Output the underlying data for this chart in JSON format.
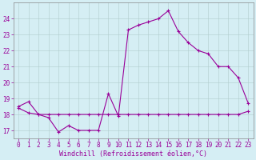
{
  "xlabel": "Windchill (Refroidissement éolien,°C)",
  "hours": [
    0,
    1,
    2,
    3,
    4,
    5,
    6,
    7,
    8,
    9,
    10,
    11,
    12,
    13,
    14,
    15,
    16,
    17,
    18,
    19,
    20,
    21,
    22,
    23
  ],
  "temp_line": [
    18.5,
    18.8,
    18.0,
    17.8,
    16.9,
    17.3,
    17.0,
    17.0,
    17.0,
    19.3,
    17.9,
    23.3,
    23.6,
    23.8,
    24.0,
    24.5,
    23.2,
    22.5,
    22.0,
    21.8,
    21.0,
    21.0,
    20.3,
    18.7
  ],
  "windchill_line": [
    18.4,
    18.1,
    18.0,
    18.0,
    18.0,
    18.0,
    18.0,
    18.0,
    18.0,
    18.0,
    18.0,
    18.0,
    18.0,
    18.0,
    18.0,
    18.0,
    18.0,
    18.0,
    18.0,
    18.0,
    18.0,
    18.0,
    18.0,
    18.2
  ],
  "line_color": "#990099",
  "bg_color": "#d5eef4",
  "grid_color": "#b0cccc",
  "ylim": [
    16.5,
    25.0
  ],
  "xlim": [
    -0.5,
    23.5
  ],
  "yticks": [
    17,
    18,
    19,
    20,
    21,
    22,
    23,
    24
  ],
  "xticks": [
    0,
    1,
    2,
    3,
    4,
    5,
    6,
    7,
    8,
    9,
    10,
    11,
    12,
    13,
    14,
    15,
    16,
    17,
    18,
    19,
    20,
    21,
    22,
    23
  ]
}
